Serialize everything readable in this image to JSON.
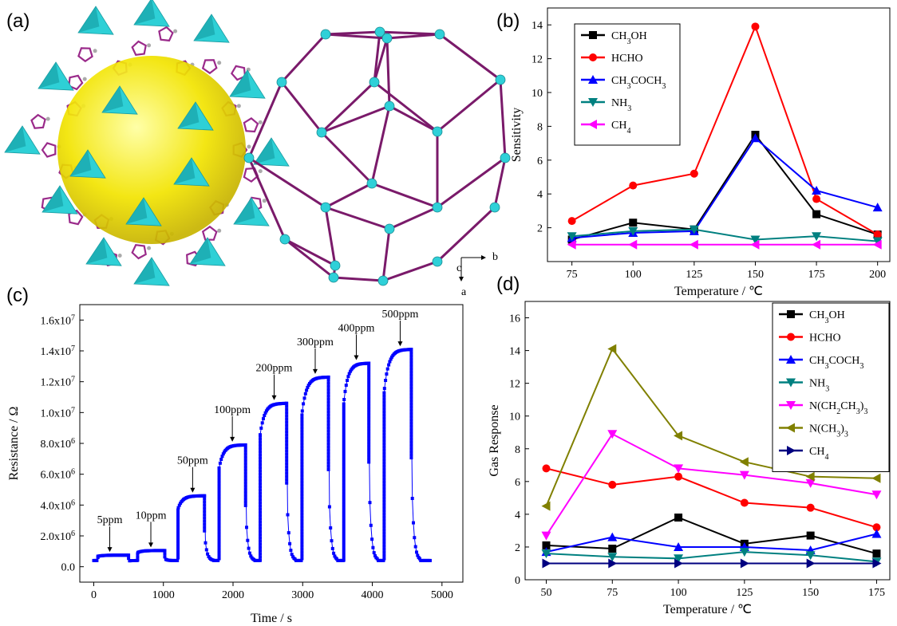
{
  "panels": {
    "a": "(a)",
    "b": "(b)",
    "c": "(c)",
    "d": "(d)"
  },
  "structure": {
    "axes": {
      "b": "b",
      "c": "c",
      "a": "a"
    }
  },
  "chart_data": [
    {
      "id": "b",
      "type": "line",
      "xlabel": "Temperature / ℃",
      "ylabel": "Sensitivity",
      "xlim": [
        65,
        205
      ],
      "ylim": [
        0,
        15
      ],
      "xticks": [
        "75",
        "100",
        "125",
        "150",
        "175",
        "200"
      ],
      "yticks": [
        "2",
        "4",
        "6",
        "8",
        "10",
        "12",
        "14"
      ],
      "x": [
        75,
        100,
        125,
        150,
        175,
        200
      ],
      "legend_position": "top-left",
      "series": [
        {
          "name": "CH3OH",
          "sub": "CH<tspan baseline-shift='sub' font-size='10'>3</tspan>OH",
          "color": "#000000",
          "marker": "square",
          "values": [
            1.3,
            2.3,
            1.9,
            7.5,
            2.8,
            1.6
          ]
        },
        {
          "name": "HCHO",
          "sub": "HCHO",
          "color": "#ff0000",
          "marker": "circle",
          "values": [
            2.4,
            4.5,
            5.2,
            13.9,
            3.7,
            1.6
          ]
        },
        {
          "name": "CH3COCH3",
          "sub": "CH<tspan baseline-shift='sub' font-size='10'>3</tspan>COCH<tspan baseline-shift='sub' font-size='10'>3</tspan>",
          "color": "#0000ff",
          "marker": "triangle-up",
          "values": [
            1.4,
            1.7,
            1.8,
            7.3,
            4.2,
            3.2
          ]
        },
        {
          "name": "NH3",
          "sub": "NH<tspan baseline-shift='sub' font-size='10'>3</tspan>",
          "color": "#008080",
          "marker": "triangle-down",
          "values": [
            1.5,
            1.8,
            1.9,
            1.3,
            1.5,
            1.2
          ]
        },
        {
          "name": "CH4",
          "sub": "CH<tspan baseline-shift='sub' font-size='10'>4</tspan>",
          "color": "#ff00ff",
          "marker": "triangle-left",
          "values": [
            1.0,
            1.0,
            1.0,
            1.0,
            1.0,
            1.0
          ]
        }
      ]
    },
    {
      "id": "c",
      "type": "line",
      "xlabel": "Time / s",
      "ylabel": "Resistance / Ω",
      "xlim": [
        -200,
        5300
      ],
      "ylim": [
        -1000000,
        17000000
      ],
      "xticks": [
        "0",
        "1000",
        "2000",
        "3000",
        "4000",
        "5000"
      ],
      "yticks": [
        {
          "v": 0,
          "m": "0.0",
          "e": ""
        },
        {
          "v": 2000000,
          "m": "2.0x10",
          "e": "6"
        },
        {
          "v": 4000000,
          "m": "4.0x10",
          "e": "6"
        },
        {
          "v": 6000000,
          "m": "6.0x10",
          "e": "6"
        },
        {
          "v": 8000000,
          "m": "8.0x10",
          "e": "6"
        },
        {
          "v": 10000000,
          "m": "1.0x10",
          "e": "7"
        },
        {
          "v": 12000000,
          "m": "1.2x10",
          "e": "7"
        },
        {
          "v": 14000000,
          "m": "1.4x10",
          "e": "7"
        },
        {
          "v": 16000000,
          "m": "1.6x10",
          "e": "7"
        }
      ],
      "color": "#0000ff",
      "baseline": 400000,
      "pulses": [
        {
          "label": "5ppm",
          "start": 60,
          "end": 500,
          "peak": 750000,
          "labelX": 230
        },
        {
          "label": "10ppm",
          "start": 630,
          "end": 1020,
          "peak": 1050000,
          "labelX": 820
        },
        {
          "label": "50ppm",
          "start": 1210,
          "end": 1590,
          "peak": 4600000,
          "labelX": 1420
        },
        {
          "label": "100ppm",
          "start": 1800,
          "end": 2180,
          "peak": 7900000,
          "labelX": 1990
        },
        {
          "label": "200ppm",
          "start": 2390,
          "end": 2770,
          "peak": 10600000,
          "labelX": 2590
        },
        {
          "label": "300ppm",
          "start": 2990,
          "end": 3370,
          "peak": 12300000,
          "labelX": 3180
        },
        {
          "label": "400ppm",
          "start": 3590,
          "end": 3950,
          "peak": 13200000,
          "labelX": 3770
        },
        {
          "label": "500ppm",
          "start": 4170,
          "end": 4560,
          "peak": 14100000,
          "labelX": 4400
        }
      ],
      "tail_end": 4830
    },
    {
      "id": "d",
      "type": "line",
      "xlabel": "Temperature / ℃",
      "ylabel": "Gas Response",
      "xlim": [
        42,
        180
      ],
      "ylim": [
        0,
        17
      ],
      "xticks": [
        "50",
        "75",
        "100",
        "125",
        "150",
        "175"
      ],
      "yticks": [
        "0",
        "2",
        "4",
        "6",
        "8",
        "10",
        "12",
        "14",
        "16"
      ],
      "x": [
        50,
        75,
        100,
        125,
        150,
        175
      ],
      "legend_position": "top-right",
      "series": [
        {
          "name": "CH3OH",
          "sub": "CH<tspan baseline-shift='sub' font-size='10'>3</tspan>OH",
          "color": "#000000",
          "marker": "square",
          "values": [
            2.1,
            1.9,
            3.8,
            2.2,
            2.7,
            1.6
          ]
        },
        {
          "name": "HCHO",
          "sub": "HCHO",
          "color": "#ff0000",
          "marker": "circle",
          "values": [
            6.8,
            5.8,
            6.3,
            4.7,
            4.4,
            3.2
          ]
        },
        {
          "name": "CH3COCH3",
          "sub": "CH<tspan baseline-shift='sub' font-size='10'>3</tspan>COCH<tspan baseline-shift='sub' font-size='10'>3</tspan>",
          "color": "#0000ff",
          "marker": "triangle-up",
          "values": [
            1.7,
            2.6,
            2.0,
            2.0,
            1.8,
            2.8
          ]
        },
        {
          "name": "NH3",
          "sub": "NH<tspan baseline-shift='sub' font-size='10'>3</tspan>",
          "color": "#008080",
          "marker": "triangle-down",
          "values": [
            1.6,
            1.4,
            1.3,
            1.7,
            1.5,
            1.1
          ]
        },
        {
          "name": "N(CH2CH3)3",
          "sub": "N(CH<tspan baseline-shift='sub' font-size='10'>2</tspan>CH<tspan baseline-shift='sub' font-size='10'>3</tspan>)<tspan baseline-shift='sub' font-size='10'>3</tspan>",
          "color": "#ff00ff",
          "marker": "triangle-down",
          "values": [
            2.7,
            8.9,
            6.8,
            6.4,
            5.9,
            5.2
          ]
        },
        {
          "name": "N(CH3)3",
          "sub": "N(CH<tspan baseline-shift='sub' font-size='10'>3</tspan>)<tspan baseline-shift='sub' font-size='10'>3</tspan>",
          "color": "#808000",
          "marker": "triangle-left",
          "values": [
            4.5,
            14.1,
            8.8,
            7.2,
            6.3,
            6.2
          ]
        },
        {
          "name": "CH4",
          "sub": "CH<tspan baseline-shift='sub' font-size='10'>4</tspan>",
          "color": "#000080",
          "marker": "triangle-right",
          "values": [
            1.0,
            1.0,
            1.0,
            1.0,
            1.0,
            1.0
          ]
        }
      ]
    }
  ]
}
